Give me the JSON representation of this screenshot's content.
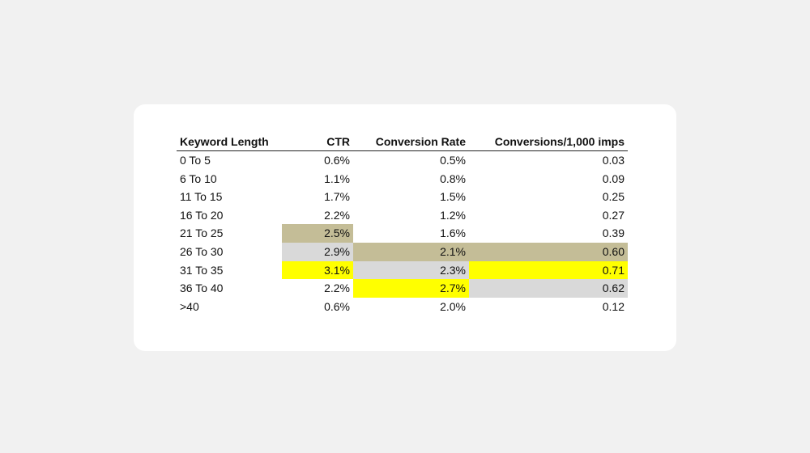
{
  "chart_data": {
    "type": "table",
    "columns": [
      "Keyword Length",
      "CTR",
      "Conversion Rate",
      "Conversions/1,000 imps"
    ],
    "rows": [
      [
        "0 To 5",
        "0.6%",
        "0.5%",
        "0.03"
      ],
      [
        "6 To 10",
        "1.1%",
        "0.8%",
        "0.09"
      ],
      [
        "11 To 15",
        "1.7%",
        "1.5%",
        "0.25"
      ],
      [
        "16 To 20",
        "2.2%",
        "1.2%",
        "0.27"
      ],
      [
        "21 To 25",
        "2.5%",
        "1.6%",
        "0.39"
      ],
      [
        "26 To 30",
        "2.9%",
        "2.1%",
        "0.60"
      ],
      [
        "31 To 35",
        "3.1%",
        "2.3%",
        "0.71"
      ],
      [
        "36 To 40",
        "2.2%",
        "2.7%",
        "0.62"
      ],
      [
        ">40",
        "0.6%",
        "2.0%",
        "0.12"
      ]
    ],
    "highlights": [
      {
        "row": 4,
        "col": 1,
        "rank": 3
      },
      {
        "row": 5,
        "col": 1,
        "rank": 2
      },
      {
        "row": 6,
        "col": 1,
        "rank": 1
      },
      {
        "row": 5,
        "col": 2,
        "rank": 3
      },
      {
        "row": 6,
        "col": 2,
        "rank": 2
      },
      {
        "row": 7,
        "col": 2,
        "rank": 1
      },
      {
        "row": 5,
        "col": 3,
        "rank": 3
      },
      {
        "row": 6,
        "col": 3,
        "rank": 1
      },
      {
        "row": 7,
        "col": 3,
        "rank": 2
      }
    ],
    "highlight_colors": {
      "1": "#ffff00",
      "2": "#d9d9d9",
      "3": "#c4bd97"
    }
  }
}
